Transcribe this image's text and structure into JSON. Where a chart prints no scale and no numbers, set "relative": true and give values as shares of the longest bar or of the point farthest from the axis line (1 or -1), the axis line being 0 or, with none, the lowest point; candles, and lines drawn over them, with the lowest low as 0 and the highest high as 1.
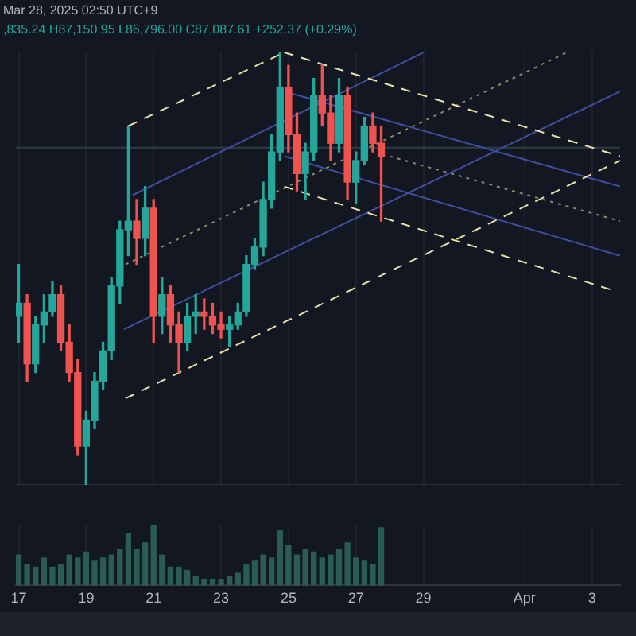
{
  "chart_data": [
    {
      "type": "candlestick",
      "relative": true,
      "title": "Mar 28, 2025 02:50 UTC+9",
      "annotations": [
        ",835.24 H87,150.95 L86,796.00 C87,087.61 +252.37 (+0.29%)"
      ],
      "x": [
        "2025-03-17T00:00",
        "2025-03-17T06:00",
        "2025-03-17T12:00",
        "2025-03-17T18:00",
        "2025-03-18T00:00",
        "2025-03-18T06:00",
        "2025-03-18T12:00",
        "2025-03-18T18:00",
        "2025-03-19T00:00",
        "2025-03-19T06:00",
        "2025-03-19T12:00",
        "2025-03-19T18:00",
        "2025-03-20T00:00",
        "2025-03-20T06:00",
        "2025-03-20T12:00",
        "2025-03-20T18:00",
        "2025-03-21T00:00",
        "2025-03-21T06:00",
        "2025-03-21T12:00",
        "2025-03-21T18:00",
        "2025-03-22T00:00",
        "2025-03-22T06:00",
        "2025-03-22T12:00",
        "2025-03-22T18:00",
        "2025-03-23T00:00",
        "2025-03-23T06:00",
        "2025-03-23T12:00",
        "2025-03-23T18:00",
        "2025-03-24T00:00",
        "2025-03-24T06:00",
        "2025-03-24T12:00",
        "2025-03-24T18:00",
        "2025-03-25T00:00",
        "2025-03-25T06:00",
        "2025-03-25T12:00",
        "2025-03-25T18:00",
        "2025-03-26T00:00",
        "2025-03-26T06:00",
        "2025-03-26T12:00",
        "2025-03-26T18:00",
        "2025-03-27T00:00",
        "2025-03-27T06:00",
        "2025-03-27T12:00",
        "2025-03-27T18:00"
      ],
      "ohlc": [
        [
          0.39,
          0.51,
          0.33,
          0.42
        ],
        [
          0.42,
          0.44,
          0.24,
          0.28
        ],
        [
          0.28,
          0.39,
          0.26,
          0.37
        ],
        [
          0.37,
          0.44,
          0.33,
          0.4
        ],
        [
          0.4,
          0.47,
          0.39,
          0.44
        ],
        [
          0.44,
          0.46,
          0.31,
          0.33
        ],
        [
          0.33,
          0.37,
          0.24,
          0.26
        ],
        [
          0.26,
          0.29,
          0.07,
          0.09
        ],
        [
          0.09,
          0.17,
          0,
          0.15
        ],
        [
          0.15,
          0.26,
          0.13,
          0.24
        ],
        [
          0.24,
          0.33,
          0.22,
          0.31
        ],
        [
          0.31,
          0.48,
          0.29,
          0.46
        ],
        [
          0.46,
          0.61,
          0.42,
          0.59
        ],
        [
          0.59,
          0.83,
          0.53,
          0.61
        ],
        [
          0.61,
          0.66,
          0.51,
          0.57
        ],
        [
          0.57,
          0.69,
          0.53,
          0.64
        ],
        [
          0.64,
          0.66,
          0.33,
          0.39
        ],
        [
          0.39,
          0.48,
          0.35,
          0.44
        ],
        [
          0.44,
          0.46,
          0.33,
          0.37
        ],
        [
          0.37,
          0.4,
          0.26,
          0.33
        ],
        [
          0.33,
          0.42,
          0.31,
          0.39
        ],
        [
          0.39,
          0.44,
          0.35,
          0.4
        ],
        [
          0.4,
          0.43,
          0.36,
          0.39
        ],
        [
          0.39,
          0.42,
          0.35,
          0.37
        ],
        [
          0.37,
          0.4,
          0.34,
          0.36
        ],
        [
          0.36,
          0.39,
          0.32,
          0.37
        ],
        [
          0.37,
          0.42,
          0.36,
          0.4
        ],
        [
          0.4,
          0.53,
          0.39,
          0.51
        ],
        [
          0.51,
          0.57,
          0.5,
          0.55
        ],
        [
          0.55,
          0.7,
          0.53,
          0.66
        ],
        [
          0.66,
          0.81,
          0.64,
          0.77
        ],
        [
          0.77,
          1,
          0.75,
          0.92
        ],
        [
          0.92,
          0.97,
          0.77,
          0.81
        ],
        [
          0.81,
          0.86,
          0.68,
          0.72
        ],
        [
          0.72,
          0.79,
          0.66,
          0.77
        ],
        [
          0.77,
          0.94,
          0.75,
          0.9
        ],
        [
          0.9,
          0.97,
          0.83,
          0.86
        ],
        [
          0.86,
          0.9,
          0.75,
          0.79
        ],
        [
          0.79,
          0.94,
          0.77,
          0.9
        ],
        [
          0.9,
          0.92,
          0.66,
          0.7
        ],
        [
          0.7,
          0.77,
          0.65,
          0.75
        ],
        [
          0.75,
          0.85,
          0.74,
          0.83
        ],
        [
          0.83,
          0.86,
          0.77,
          0.79
        ],
        [
          0.79,
          0.83,
          0.61,
          0.76
        ]
      ],
      "colors": [
        "#26a69a",
        "#ef5350",
        "#26a69a",
        "#26a69a",
        "#26a69a",
        "#ef5350",
        "#ef5350",
        "#ef5350",
        "#26a69a",
        "#26a69a",
        "#26a69a",
        "#26a69a",
        "#26a69a",
        "#26a69a",
        "#ef5350",
        "#26a69a",
        "#ef5350",
        "#26a69a",
        "#ef5350",
        "#ef5350",
        "#26a69a",
        "#26a69a",
        "#ef5350",
        "#ef5350",
        "#ef5350",
        "#26a69a",
        "#26a69a",
        "#26a69a",
        "#26a69a",
        "#26a69a",
        "#26a69a",
        "#26a69a",
        "#ef5350",
        "#ef5350",
        "#26a69a",
        "#26a69a",
        "#ef5350",
        "#ef5350",
        "#26a69a",
        "#ef5350",
        "#26a69a",
        "#26a69a",
        "#ef5350",
        "#ef5350"
      ],
      "series": [
        {
          "type": "line",
          "line_style": "dashed",
          "color": "#e8dfa8",
          "x": [
            "2025-03-20T06:00",
            "2025-03-24T21:00"
          ],
          "values": [
            0.83,
            1
          ]
        },
        {
          "type": "line",
          "line_style": "dashed",
          "color": "#e8dfa8",
          "x": [
            "2025-03-24T21:00",
            "2025-04-03T20:00"
          ],
          "values": [
            1,
            0.76
          ]
        },
        {
          "type": "line",
          "line_style": "dashed",
          "color": "#e8dfa8",
          "x": [
            "2025-03-24T21:00",
            "2025-04-03T15:00"
          ],
          "values": [
            0.69,
            0.45
          ]
        },
        {
          "type": "line",
          "line_style": "dashed",
          "color": "#e8dfa8",
          "x": [
            "2025-03-20T04:00",
            "2025-04-03T20:00"
          ],
          "values": [
            0.2,
            0.75
          ]
        },
        {
          "type": "line",
          "line_style": "solid",
          "color": "#3d4f9e",
          "x": [
            "2025-03-20T09:00",
            "2025-03-29T00:00"
          ],
          "values": [
            0.67,
            1
          ]
        },
        {
          "type": "line",
          "line_style": "solid",
          "color": "#3d4f9e",
          "x": [
            "2025-03-20T03:00",
            "2025-04-03T20:00"
          ],
          "values": [
            0.36,
            0.91
          ]
        },
        {
          "type": "line",
          "line_style": "solid",
          "color": "#3d4f9e",
          "x": [
            "2025-03-24T21:00",
            "2025-04-03T20:00"
          ],
          "values": [
            0.91,
            0.69
          ]
        },
        {
          "type": "line",
          "line_style": "solid",
          "color": "#3d4f9e",
          "x": [
            "2025-03-24T21:00",
            "2025-04-03T20:00"
          ],
          "values": [
            0.76,
            0.53
          ]
        },
        {
          "type": "line",
          "line_style": "dotted",
          "color": "#8c8866",
          "x": [
            "2025-03-20T04:00",
            "2025-04-02T06:00"
          ],
          "values": [
            0.51,
            1
          ]
        },
        {
          "type": "line",
          "line_style": "dotted",
          "color": "#8c8866",
          "x": [
            "2025-03-28T00:00",
            "2025-04-03T20:00"
          ],
          "values": [
            0.76,
            0.61
          ]
        }
      ],
      "ref_lines": [
        {
          "axis": "y",
          "value": 0.78,
          "color": "#2f3d45"
        }
      ],
      "xlim": [
        "2025-03-16T22:00",
        "2025-04-03T20:00"
      ],
      "tick_labels": false,
      "grid": "x",
      "legend": false
    },
    {
      "type": "bar",
      "relative": true,
      "color": "#2a5c56",
      "x": [
        "2025-03-17T00:00",
        "2025-03-17T06:00",
        "2025-03-17T12:00",
        "2025-03-17T18:00",
        "2025-03-18T00:00",
        "2025-03-18T06:00",
        "2025-03-18T12:00",
        "2025-03-18T18:00",
        "2025-03-19T00:00",
        "2025-03-19T06:00",
        "2025-03-19T12:00",
        "2025-03-19T18:00",
        "2025-03-20T00:00",
        "2025-03-20T06:00",
        "2025-03-20T12:00",
        "2025-03-20T18:00",
        "2025-03-21T00:00",
        "2025-03-21T06:00",
        "2025-03-21T12:00",
        "2025-03-21T18:00",
        "2025-03-22T00:00",
        "2025-03-22T06:00",
        "2025-03-22T12:00",
        "2025-03-22T18:00",
        "2025-03-23T00:00",
        "2025-03-23T06:00",
        "2025-03-23T12:00",
        "2025-03-23T18:00",
        "2025-03-24T00:00",
        "2025-03-24T06:00",
        "2025-03-24T12:00",
        "2025-03-24T18:00",
        "2025-03-25T00:00",
        "2025-03-25T06:00",
        "2025-03-25T12:00",
        "2025-03-25T18:00",
        "2025-03-26T00:00",
        "2025-03-26T06:00",
        "2025-03-26T12:00",
        "2025-03-26T18:00",
        "2025-03-27T00:00",
        "2025-03-27T06:00",
        "2025-03-27T12:00",
        "2025-03-27T18:00"
      ],
      "values": [
        0.5,
        0.35,
        0.3,
        0.45,
        0.3,
        0.35,
        0.5,
        0.45,
        0.55,
        0.4,
        0.45,
        0.5,
        0.6,
        0.85,
        0.6,
        0.7,
        1,
        0.5,
        0.3,
        0.3,
        0.25,
        0.15,
        0.1,
        0.1,
        0.1,
        0.15,
        0.2,
        0.35,
        0.4,
        0.5,
        0.45,
        0.9,
        0.65,
        0.5,
        0.6,
        0.55,
        0.45,
        0.5,
        0.6,
        0.7,
        0.45,
        0.4,
        0.35,
        0.95
      ],
      "xlim": [
        "2025-03-16T22:00",
        "2025-04-03T20:00"
      ],
      "xticks": [
        {
          "value": "2025-03-17",
          "label": "17"
        },
        {
          "value": "2025-03-19",
          "label": "19"
        },
        {
          "value": "2025-03-21",
          "label": "21"
        },
        {
          "value": "2025-03-23",
          "label": "23"
        },
        {
          "value": "2025-03-25",
          "label": "25"
        },
        {
          "value": "2025-03-27",
          "label": "27"
        },
        {
          "value": "2025-03-29",
          "label": "29"
        },
        {
          "value": "2025-04-01",
          "label": "Apr"
        },
        {
          "value": "2025-04-03",
          "label": "3"
        }
      ],
      "tick_labels": "x",
      "grid": "x",
      "legend": false
    }
  ]
}
